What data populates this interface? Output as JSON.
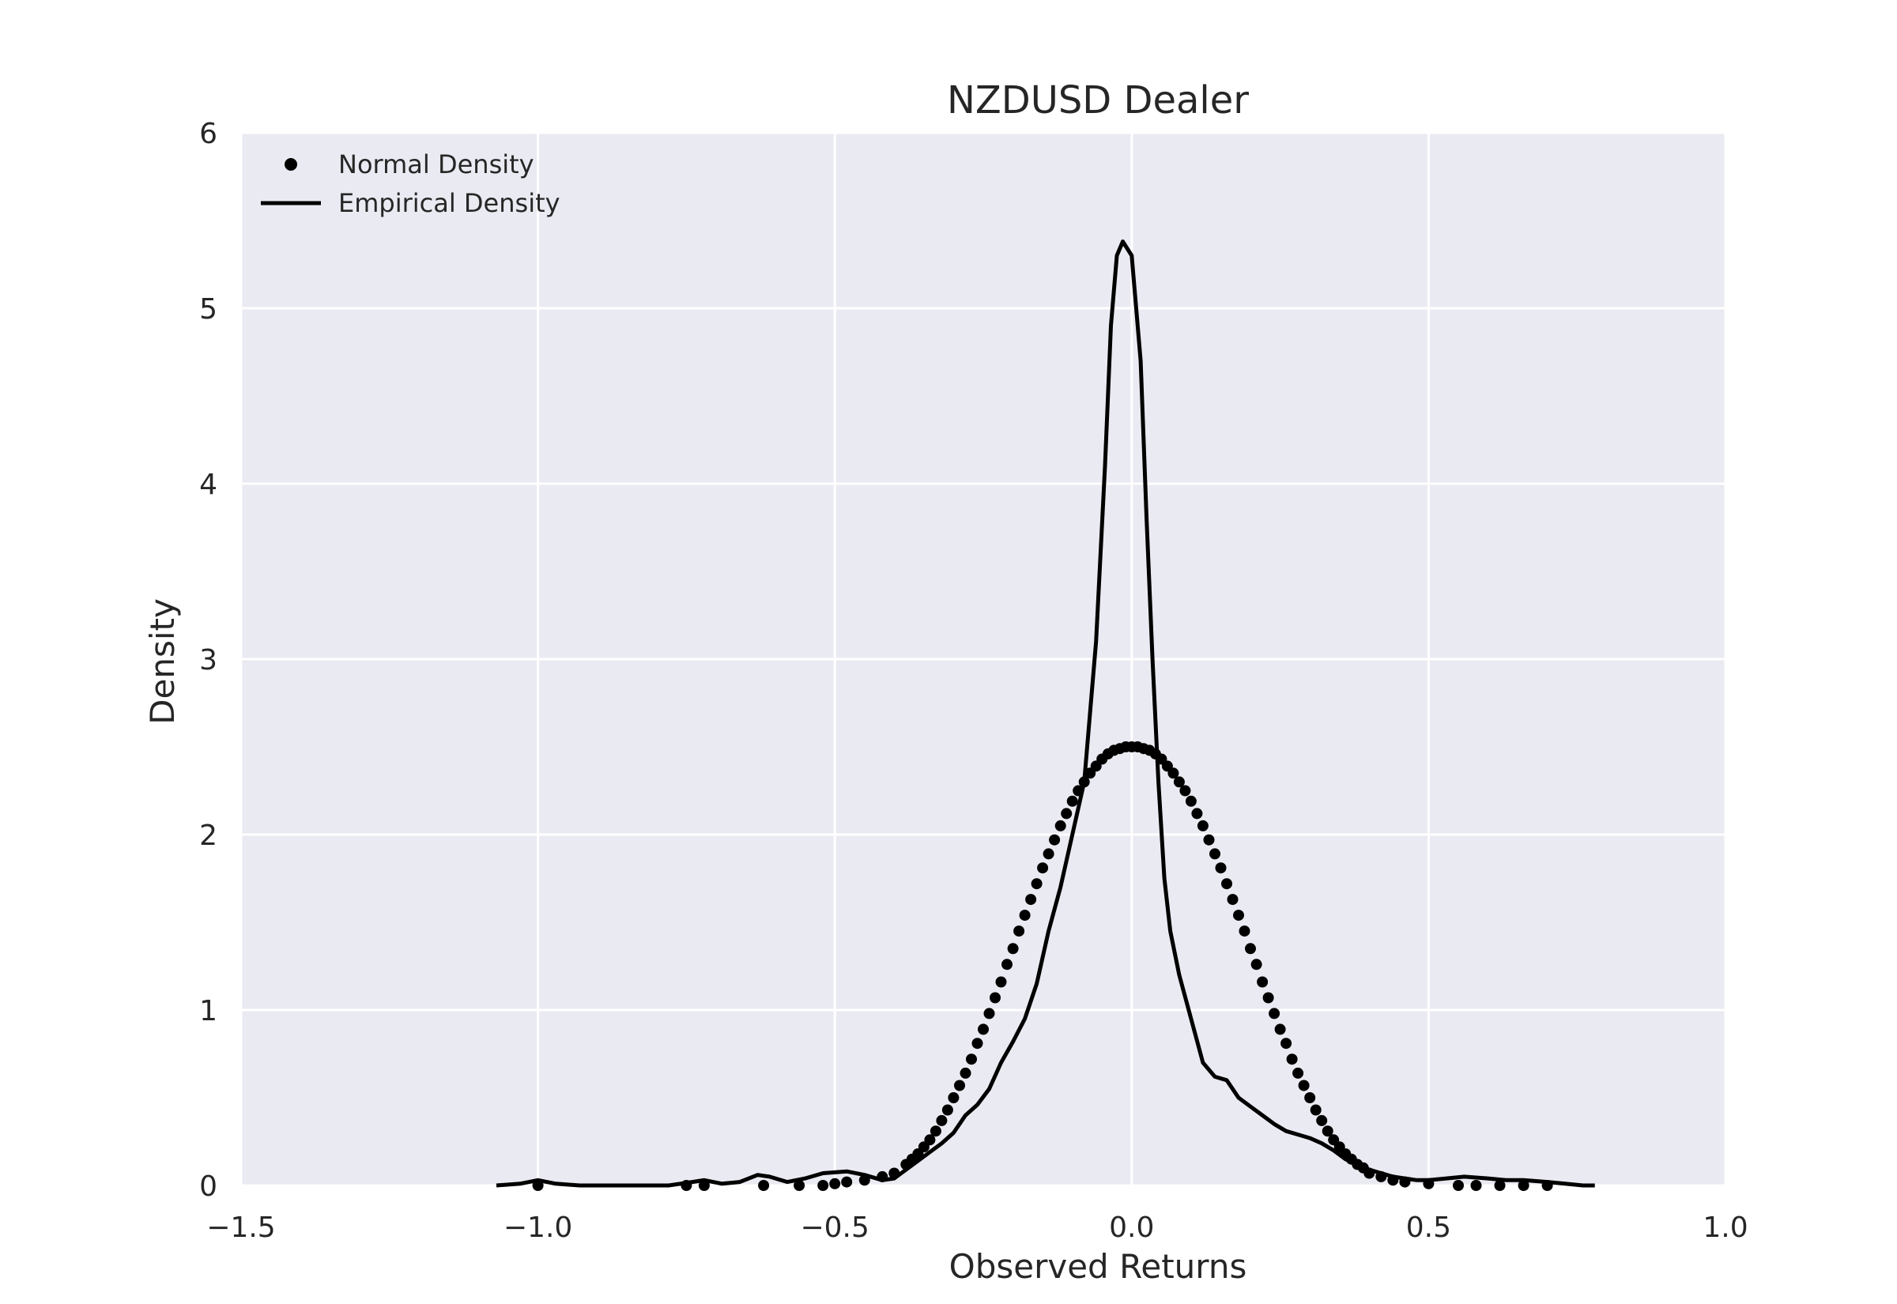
{
  "chart_data": {
    "type": "line",
    "title": "NZDUSD Dealer",
    "xlabel": "Observed Returns",
    "ylabel": "Density",
    "xlim": [
      -1.5,
      1.0
    ],
    "ylim": [
      0,
      6
    ],
    "xticks": [
      -1.5,
      -1.0,
      -0.5,
      0.0,
      0.5,
      1.0
    ],
    "xtick_labels": [
      "−1.5",
      "−1.0",
      "−0.5",
      "0.0",
      "0.5",
      "1.0"
    ],
    "yticks": [
      0,
      1,
      2,
      3,
      4,
      5,
      6
    ],
    "ytick_labels": [
      "0",
      "1",
      "2",
      "3",
      "4",
      "5",
      "6"
    ],
    "grid": true,
    "legend_position": "top-left",
    "colors": {
      "background": "#eaeaf2",
      "grid": "#ffffff",
      "series": "#000000"
    },
    "series": [
      {
        "name": "Normal Density",
        "style": "dots",
        "mean": 0.0,
        "peak": 2.5,
        "x": [
          -1.0,
          -0.75,
          -0.72,
          -0.62,
          -0.56,
          -0.52,
          -0.5,
          -0.48,
          -0.45,
          -0.42,
          -0.4,
          -0.38,
          -0.37,
          -0.36,
          -0.35,
          -0.34,
          -0.33,
          -0.32,
          -0.31,
          -0.3,
          -0.29,
          -0.28,
          -0.27,
          -0.26,
          -0.25,
          -0.24,
          -0.23,
          -0.22,
          -0.21,
          -0.2,
          -0.19,
          -0.18,
          -0.17,
          -0.16,
          -0.15,
          -0.14,
          -0.13,
          -0.12,
          -0.11,
          -0.1,
          -0.09,
          -0.08,
          -0.07,
          -0.06,
          -0.05,
          -0.04,
          -0.03,
          -0.02,
          -0.01,
          0.0,
          0.01,
          0.02,
          0.03,
          0.04,
          0.05,
          0.06,
          0.07,
          0.08,
          0.09,
          0.1,
          0.11,
          0.12,
          0.13,
          0.14,
          0.15,
          0.16,
          0.17,
          0.18,
          0.19,
          0.2,
          0.21,
          0.22,
          0.23,
          0.24,
          0.25,
          0.26,
          0.27,
          0.28,
          0.29,
          0.3,
          0.31,
          0.32,
          0.33,
          0.34,
          0.35,
          0.36,
          0.37,
          0.38,
          0.39,
          0.4,
          0.42,
          0.44,
          0.46,
          0.5,
          0.55,
          0.58,
          0.62,
          0.66,
          0.7
        ],
        "y": [
          0.0,
          0.0,
          0.0,
          0.0,
          0.0,
          0.0,
          0.01,
          0.02,
          0.03,
          0.05,
          0.07,
          0.12,
          0.15,
          0.18,
          0.22,
          0.26,
          0.31,
          0.37,
          0.43,
          0.5,
          0.57,
          0.64,
          0.72,
          0.81,
          0.89,
          0.98,
          1.07,
          1.16,
          1.26,
          1.35,
          1.45,
          1.54,
          1.63,
          1.72,
          1.81,
          1.89,
          1.97,
          2.05,
          2.12,
          2.19,
          2.25,
          2.3,
          2.35,
          2.39,
          2.43,
          2.46,
          2.48,
          2.49,
          2.5,
          2.5,
          2.5,
          2.49,
          2.48,
          2.46,
          2.43,
          2.39,
          2.35,
          2.3,
          2.25,
          2.19,
          2.12,
          2.05,
          1.97,
          1.89,
          1.81,
          1.72,
          1.63,
          1.54,
          1.45,
          1.35,
          1.26,
          1.16,
          1.07,
          0.98,
          0.89,
          0.81,
          0.72,
          0.64,
          0.57,
          0.5,
          0.43,
          0.37,
          0.31,
          0.26,
          0.22,
          0.18,
          0.15,
          0.12,
          0.1,
          0.07,
          0.05,
          0.03,
          0.02,
          0.01,
          0.0,
          0.0,
          0.0,
          0.0,
          0.0
        ]
      },
      {
        "name": "Empirical Density",
        "style": "line",
        "x": [
          -1.07,
          -1.03,
          -1.0,
          -0.97,
          -0.93,
          -0.85,
          -0.78,
          -0.74,
          -0.72,
          -0.69,
          -0.66,
          -0.63,
          -0.61,
          -0.58,
          -0.55,
          -0.52,
          -0.48,
          -0.45,
          -0.42,
          -0.4,
          -0.38,
          -0.36,
          -0.34,
          -0.32,
          -0.3,
          -0.28,
          -0.26,
          -0.24,
          -0.22,
          -0.2,
          -0.18,
          -0.16,
          -0.14,
          -0.12,
          -0.1,
          -0.08,
          -0.06,
          -0.045,
          -0.035,
          -0.025,
          -0.015,
          0.0,
          0.015,
          0.025,
          0.035,
          0.045,
          0.055,
          0.065,
          0.08,
          0.1,
          0.12,
          0.14,
          0.16,
          0.18,
          0.2,
          0.22,
          0.24,
          0.26,
          0.28,
          0.3,
          0.32,
          0.34,
          0.36,
          0.38,
          0.4,
          0.42,
          0.44,
          0.46,
          0.48,
          0.5,
          0.53,
          0.56,
          0.6,
          0.63,
          0.66,
          0.7,
          0.73,
          0.76,
          0.78
        ],
        "y": [
          0.0,
          0.01,
          0.03,
          0.01,
          0.0,
          0.0,
          0.0,
          0.02,
          0.03,
          0.01,
          0.02,
          0.06,
          0.05,
          0.02,
          0.04,
          0.07,
          0.08,
          0.06,
          0.03,
          0.04,
          0.09,
          0.14,
          0.19,
          0.24,
          0.3,
          0.4,
          0.46,
          0.55,
          0.7,
          0.82,
          0.95,
          1.15,
          1.45,
          1.7,
          2.0,
          2.3,
          3.1,
          4.1,
          4.9,
          5.3,
          5.38,
          5.3,
          4.7,
          3.8,
          3.0,
          2.3,
          1.75,
          1.45,
          1.2,
          0.95,
          0.7,
          0.62,
          0.6,
          0.5,
          0.45,
          0.4,
          0.35,
          0.31,
          0.29,
          0.27,
          0.24,
          0.2,
          0.15,
          0.12,
          0.09,
          0.07,
          0.05,
          0.04,
          0.03,
          0.03,
          0.04,
          0.05,
          0.04,
          0.03,
          0.03,
          0.02,
          0.01,
          0.0,
          0.0
        ]
      }
    ]
  }
}
